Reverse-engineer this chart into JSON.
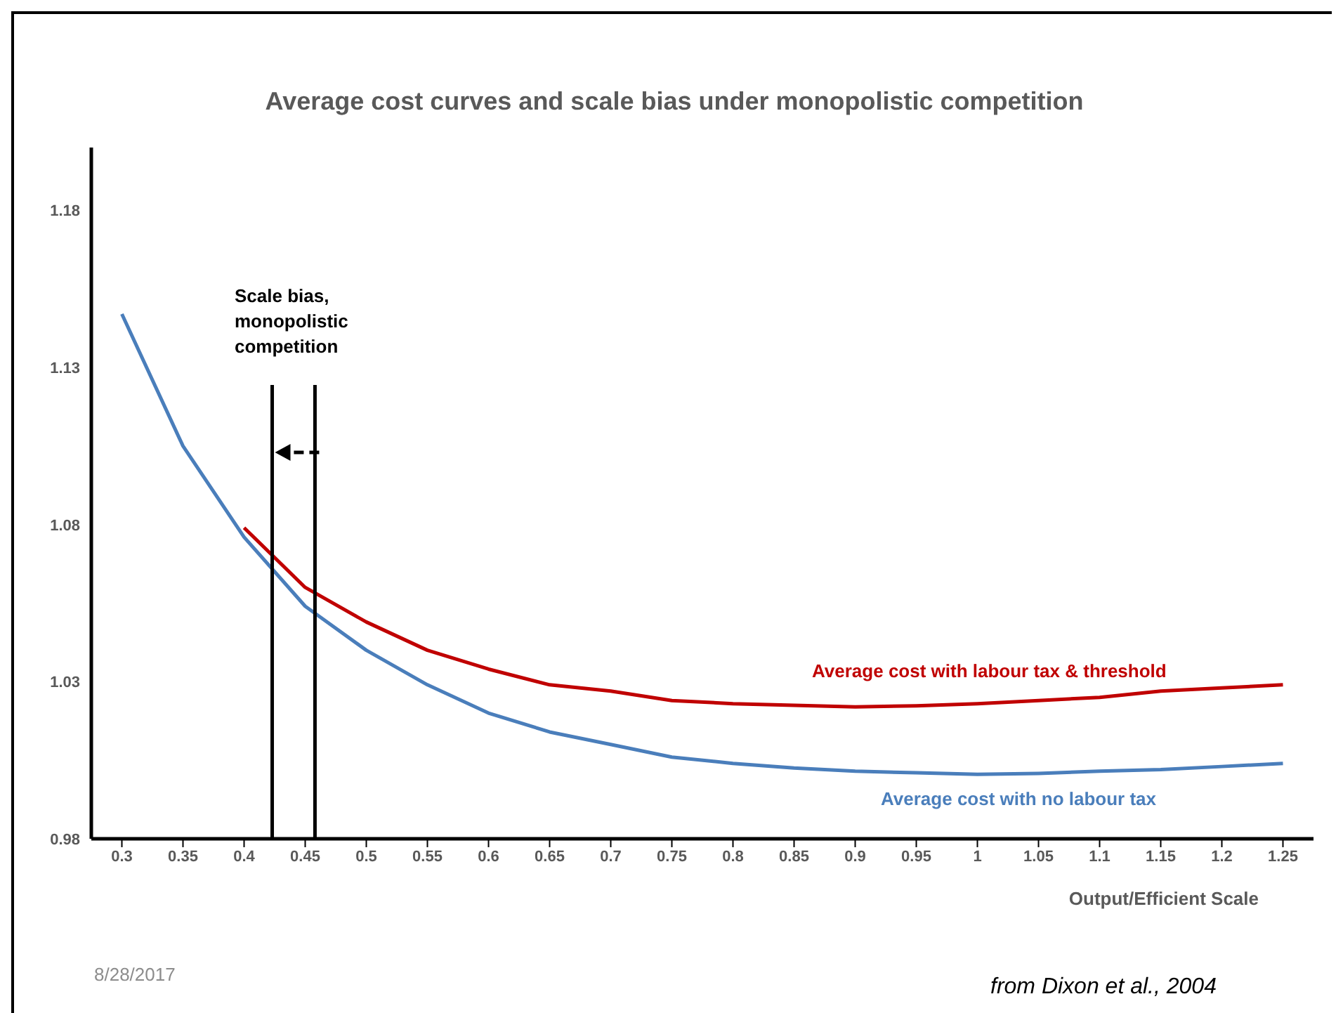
{
  "chart_data": {
    "type": "line",
    "title": "Average cost curves and scale bias under monopolistic competition",
    "xlabel": "Output/Efficient Scale",
    "x": [
      0.3,
      0.35,
      0.4,
      0.45,
      0.5,
      0.55,
      0.6,
      0.65,
      0.7,
      0.75,
      0.8,
      0.85,
      0.9,
      0.95,
      1,
      1.05,
      1.1,
      1.15,
      1.2,
      1.25
    ],
    "series": [
      {
        "name": "Average cost with labour tax & threshold",
        "color": "#c00000",
        "values": [
          null,
          null,
          1.079,
          1.06,
          1.049,
          1.04,
          1.034,
          1.029,
          1.027,
          1.024,
          1.023,
          1.0225,
          1.022,
          1.0223,
          1.023,
          1.024,
          1.025,
          1.027,
          1.028,
          1.029
        ]
      },
      {
        "name": "Average cost with no labour tax",
        "color": "#4a7ebb",
        "values": [
          1.147,
          1.105,
          1.076,
          1.054,
          1.04,
          1.029,
          1.02,
          1.014,
          1.01,
          1.006,
          1.004,
          1.0025,
          1.0015,
          1.001,
          1.0005,
          1.0008,
          1.0015,
          1.002,
          1.003,
          1.004
        ]
      }
    ],
    "xlim": [
      0.275,
      1.275
    ],
    "xticks": [
      0.3,
      0.35,
      0.4,
      0.45,
      0.5,
      0.55,
      0.6,
      0.65,
      0.7,
      0.75,
      0.8,
      0.85,
      0.9,
      0.95,
      1,
      1.05,
      1.1,
      1.15,
      1.2,
      1.25
    ],
    "ylim": [
      0.98,
      1.2
    ],
    "yticks": [
      0.98,
      1.03,
      1.08,
      1.13,
      1.18
    ],
    "ref_lines": [
      {
        "axis": "x",
        "value": 0.423,
        "color": "#000000"
      },
      {
        "axis": "x",
        "value": 0.458,
        "color": "#000000"
      }
    ],
    "annotations": [
      "Scale bias, monopolistic competition",
      "8/28/2017",
      "from Dixon et al., 2004"
    ],
    "marker": "none",
    "line_style": "solid"
  }
}
